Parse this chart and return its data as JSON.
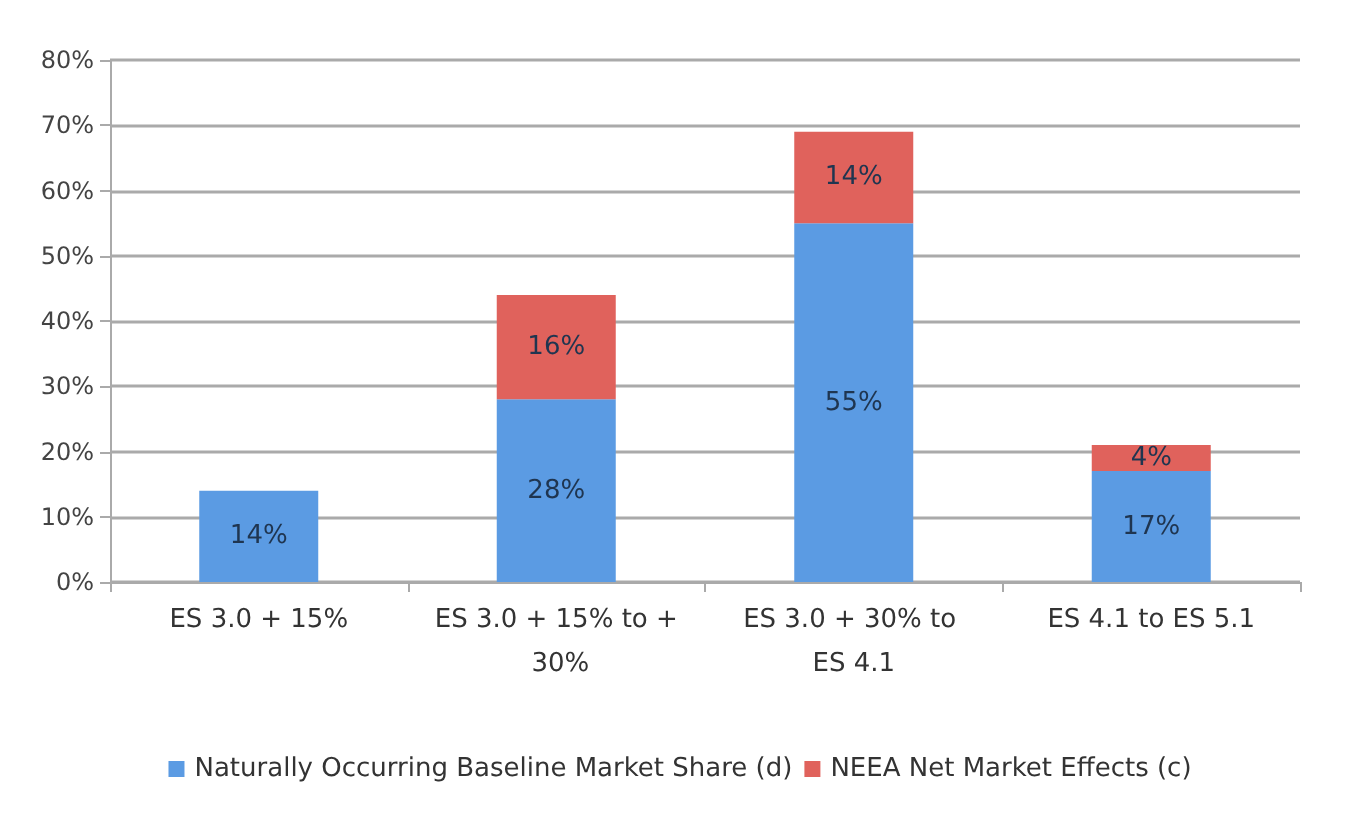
{
  "chart_data": {
    "type": "bar",
    "stacked": true,
    "categories": [
      "ES 3.0 + 15%",
      "ES 3.0 + 15% to + 30%",
      "ES 3.0 + 30% to ES 4.1",
      "ES 4.1 to ES 5.1"
    ],
    "series": [
      {
        "name": "Naturally Occurring Baseline Market Share (d)",
        "color": "#5b9be3",
        "values": [
          14,
          28,
          55,
          17
        ],
        "value_labels": [
          "14%",
          "28%",
          "55%",
          "17%"
        ]
      },
      {
        "name": "NEEA Net Market Effects (c)",
        "color": "#e0625c",
        "values": [
          null,
          16,
          14,
          4
        ],
        "value_labels": [
          null,
          "16%",
          "14%",
          "4%"
        ]
      }
    ],
    "ylim": [
      0,
      80
    ],
    "yticks": [
      {
        "value": 0,
        "label": "0%"
      },
      {
        "value": 10,
        "label": "10%"
      },
      {
        "value": 20,
        "label": "20%"
      },
      {
        "value": 30,
        "label": "30%"
      },
      {
        "value": 40,
        "label": "40%"
      },
      {
        "value": 50,
        "label": "50%"
      },
      {
        "value": 60,
        "label": "60%"
      },
      {
        "value": 70,
        "label": "70%"
      },
      {
        "value": 80,
        "label": "80%"
      }
    ],
    "grid": "y",
    "legend": "bottom"
  }
}
